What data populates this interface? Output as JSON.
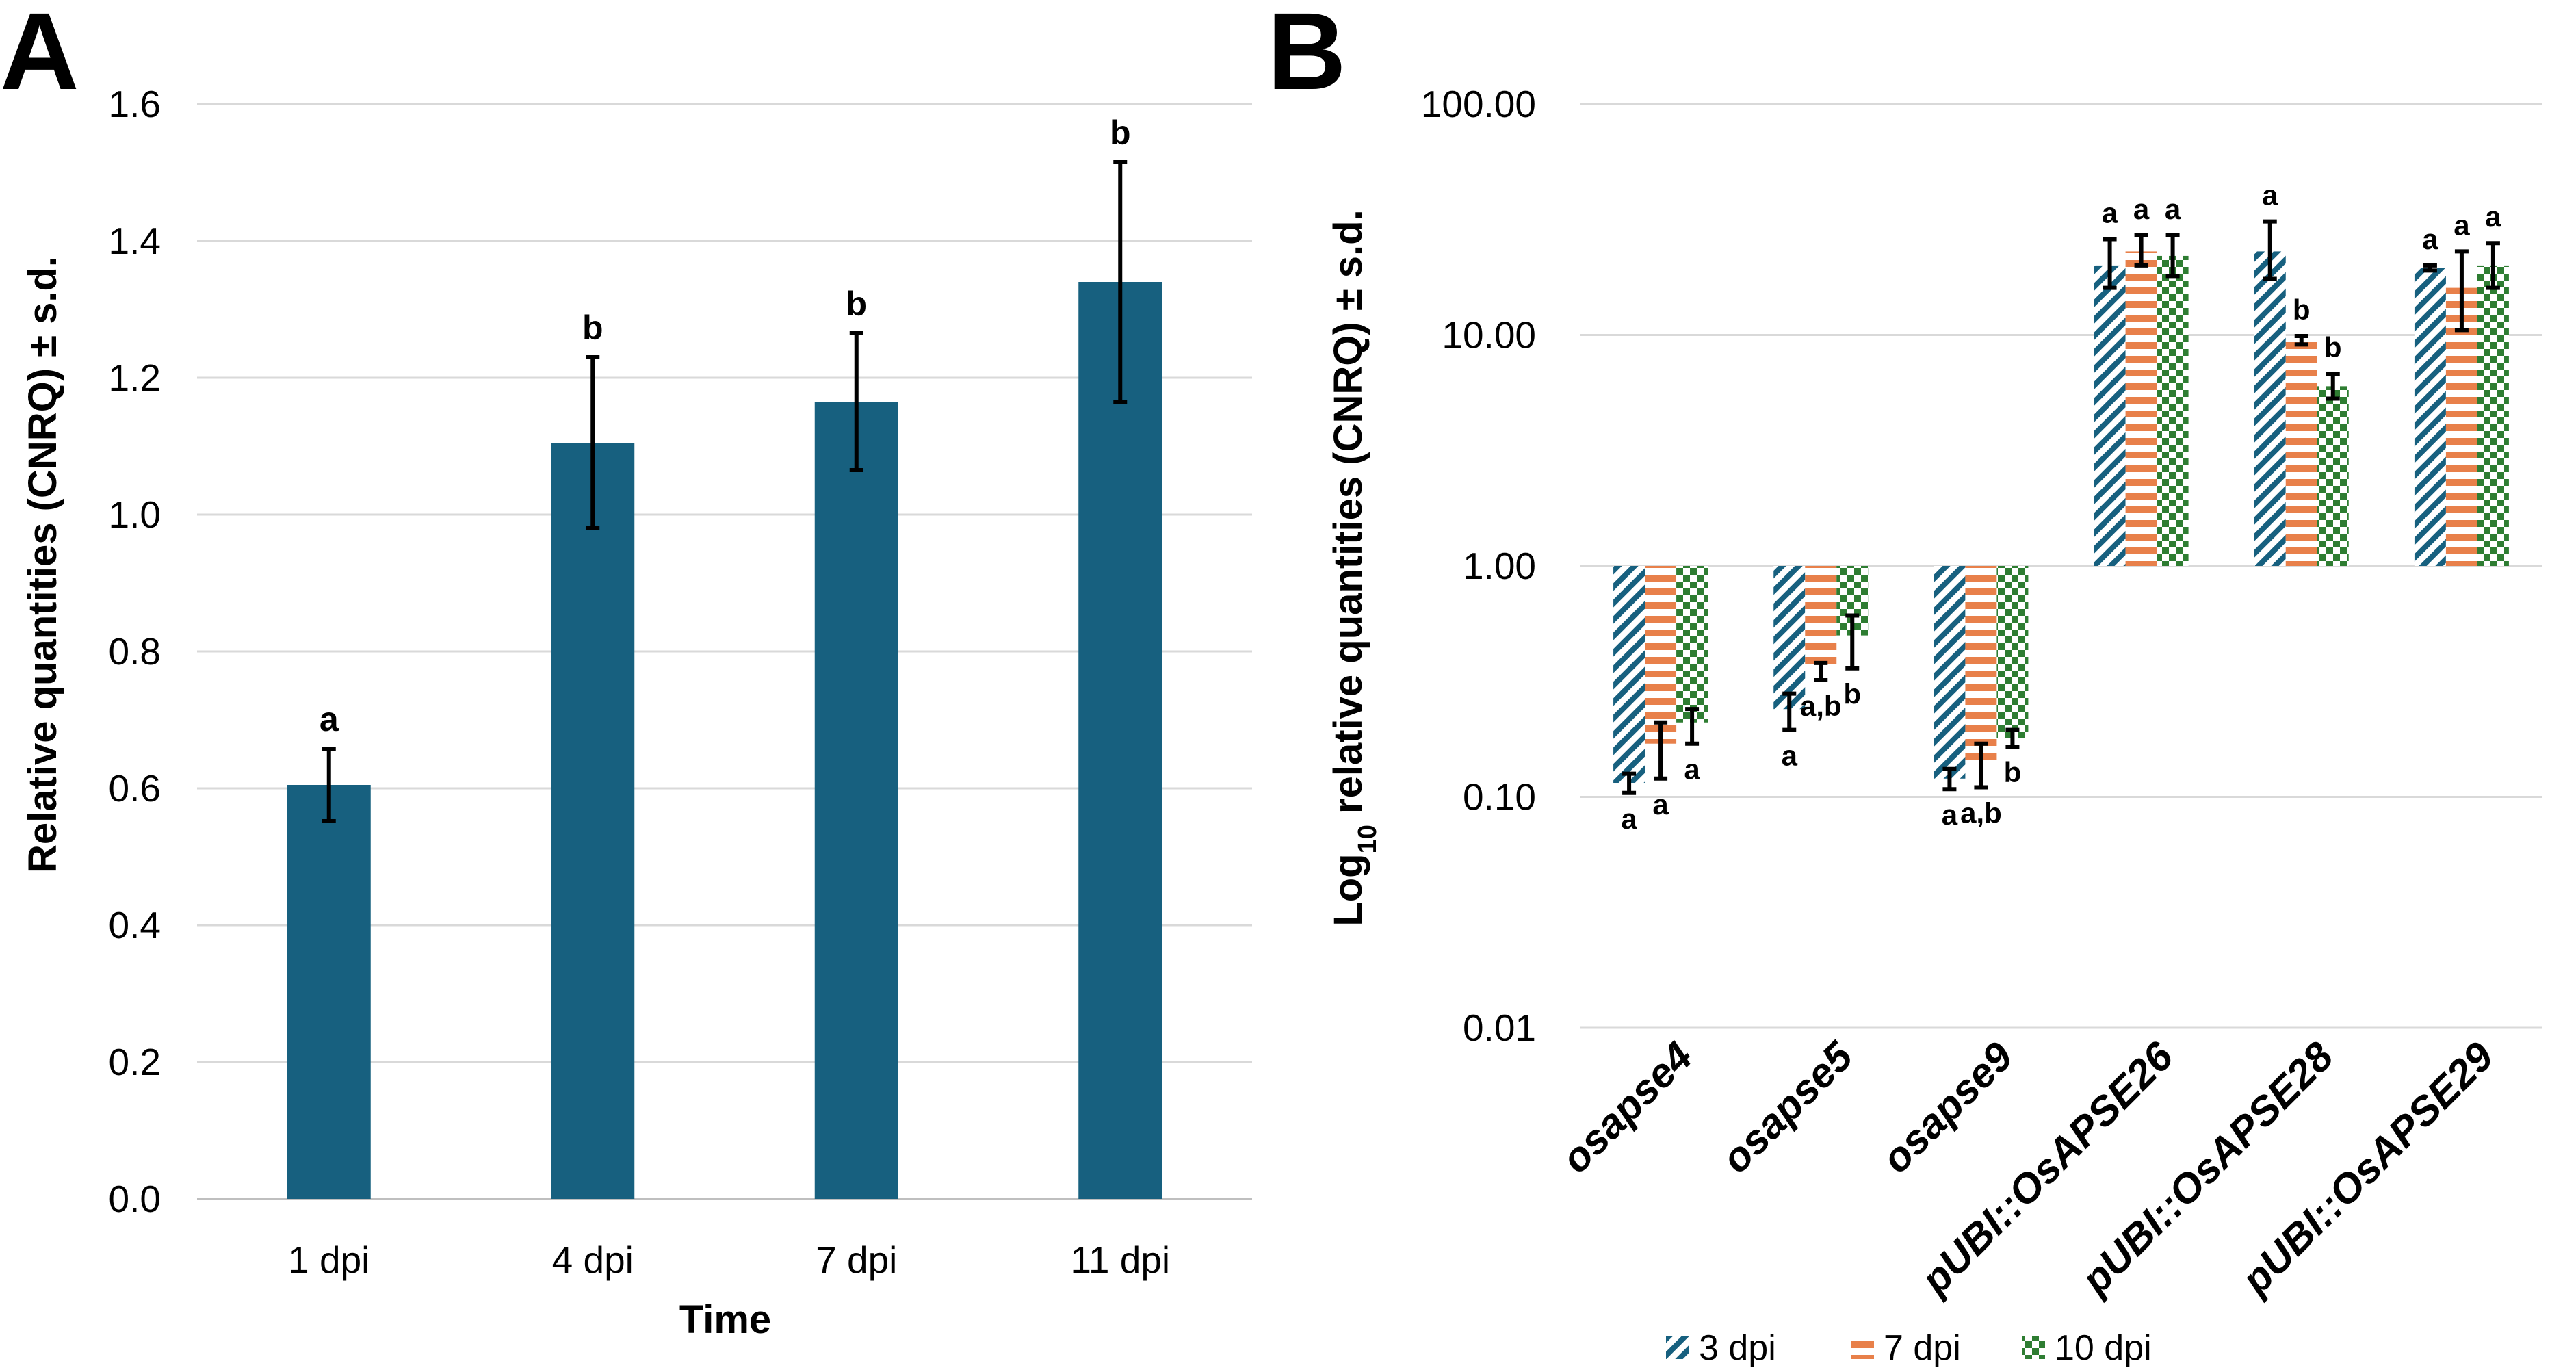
{
  "chart_data": [
    {
      "panel": "A",
      "type": "bar",
      "title": "",
      "xlabel": "Time",
      "ylabel": "Relative quantities (CNRQ) ± s.d.",
      "ylim": [
        0,
        1.6
      ],
      "yticks": [
        "0.0",
        "0.2",
        "0.4",
        "0.6",
        "0.8",
        "1.0",
        "1.2",
        "1.4",
        "1.6"
      ],
      "grid": true,
      "color": "#17607f",
      "categories": [
        "1 dpi",
        "4 dpi",
        "7 dpi",
        "11 dpi"
      ],
      "values": [
        0.605,
        1.105,
        1.165,
        1.34
      ],
      "errors": [
        0.053,
        0.125,
        0.1,
        0.175
      ],
      "significance": [
        "a",
        "b",
        "b",
        "b"
      ]
    },
    {
      "panel": "B",
      "type": "bar",
      "title": "",
      "xlabel": "",
      "ylabel": "Log10 relative quantities (CNRQ) ± s.d.",
      "ylabel_main": "Log",
      "ylabel_sub": "10",
      "ylabel_rest": " relative quantities (CNRQ) ± s.d.",
      "yscale": "log",
      "ylim": [
        0.01,
        100
      ],
      "yticks": [
        "0.01",
        "0.10",
        "1.00",
        "10.00",
        "100.00"
      ],
      "grid": true,
      "baseline": 1,
      "categories": [
        "osapse4",
        "osapse5",
        "osapse9",
        "pUBI::OsAPSE26",
        "pUBI::OsAPSE28",
        "pUBI::OsAPSE29"
      ],
      "series": [
        {
          "name": "3 dpi",
          "color": "#17607f",
          "pattern": "diagonal-stripes",
          "values": [
            0.115,
            0.24,
            0.12,
            20.0,
            23.0,
            19.5
          ],
          "err_low": [
            0.104,
            0.195,
            0.108,
            16.0,
            17.5,
            19.0
          ],
          "err_high": [
            0.126,
            0.28,
            0.132,
            26.0,
            31.0,
            20.0
          ],
          "significance": [
            "a",
            "a",
            "a",
            "a",
            "a",
            "a"
          ]
        },
        {
          "name": "7 dpi",
          "color": "#e8804a",
          "pattern": "horizontal-stripes",
          "values": [
            0.17,
            0.35,
            0.14,
            23.0,
            9.5,
            16.0
          ],
          "err_low": [
            0.12,
            0.32,
            0.11,
            20.0,
            9.1,
            10.5
          ],
          "err_high": [
            0.21,
            0.38,
            0.17,
            27.0,
            9.9,
            23.0
          ],
          "significance": [
            "a",
            "a,b",
            "a,b",
            "a",
            "b",
            "a"
          ]
        },
        {
          "name": "10 dpi",
          "color": "#2e7d32",
          "pattern": "checkerboard",
          "values": [
            0.21,
            0.5,
            0.18,
            22.0,
            6.0,
            20.0
          ],
          "err_low": [
            0.17,
            0.36,
            0.165,
            18.0,
            5.3,
            16.0
          ],
          "err_high": [
            0.24,
            0.61,
            0.195,
            27.0,
            6.8,
            25.0
          ],
          "significance": [
            "a",
            "b",
            "b",
            "a",
            "b",
            "a"
          ]
        }
      ],
      "legend": [
        "3 dpi",
        "7 dpi",
        "10 dpi"
      ],
      "legend_position": "bottom"
    }
  ]
}
